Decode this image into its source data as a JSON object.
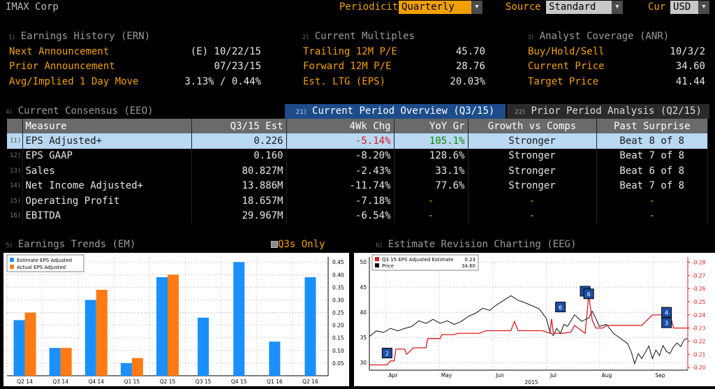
{
  "header": {
    "title": "IMAX Corp",
    "periodicity_label": "Periodicity",
    "periodicity_value": "Quarterly",
    "source_label": "Source",
    "source_value": "Standard",
    "cur_label": "Cur",
    "cur_value": "USD"
  },
  "sections": {
    "ern": {
      "index": "1)",
      "title": "Earnings History (ERN)",
      "rows": [
        {
          "label": "Next Announcement",
          "value": "(E)  10/22/15"
        },
        {
          "label": "Prior Announcement",
          "value": "07/23/15"
        },
        {
          "label": "Avg/Implied 1 Day Move",
          "value": "3.13% / 0.44%"
        }
      ]
    },
    "multiples": {
      "index": "2)",
      "title": "Current Multiples",
      "rows": [
        {
          "label": "Trailing 12M P/E",
          "value": "45.70"
        },
        {
          "label": "Forward 12M P/E",
          "value": "28.76"
        },
        {
          "label": "Est. LTG (EPS)",
          "value": "20.03%"
        }
      ]
    },
    "anr": {
      "index": "3)",
      "title": "Analyst Coverage (ANR)",
      "rows": [
        {
          "label": "Buy/Hold/Sell",
          "value": "10/3/2"
        },
        {
          "label": "Current Price",
          "value": "34.60"
        },
        {
          "label": "Target Price",
          "value": "41.44"
        }
      ]
    }
  },
  "consensus": {
    "index": "4)",
    "title": "Current Consensus (EEO)",
    "tab_current_index": "21)",
    "tab_current": "Current Period Overview (Q3/15)",
    "tab_prior_index": "22)",
    "tab_prior": "Prior Period Analysis (Q2/15)",
    "columns": [
      "Measure",
      "Q3/15 Est",
      "4Wk Chg",
      "YoY Gr",
      "Growth vs Comps",
      "Past Surprise"
    ],
    "rows": [
      {
        "idx": "11)",
        "measure": "EPS Adjusted+",
        "est": "0.226",
        "chg": "-5.14%",
        "yoy": "105.1%",
        "growth": "Stronger",
        "surprise": "Beat 8 of 8"
      },
      {
        "idx": "12)",
        "measure": "EPS GAAP",
        "est": "0.160",
        "chg": "-8.20%",
        "yoy": "128.6%",
        "growth": "Stronger",
        "surprise": "Beat 7 of 8"
      },
      {
        "idx": "13)",
        "measure": "Sales",
        "est": "80.827M",
        "chg": "-2.43%",
        "yoy": "33.1%",
        "growth": "Stronger",
        "surprise": "Beat 6 of 8"
      },
      {
        "idx": "14)",
        "measure": "Net Income Adjusted+",
        "est": "13.886M",
        "chg": "-11.74%",
        "yoy": "77.6%",
        "growth": "Stronger",
        "surprise": "Beat 7 of 8"
      },
      {
        "idx": "15)",
        "measure": "Operating Profit",
        "est": "18.657M",
        "chg": "-7.18%",
        "yoy": "-",
        "growth": "-",
        "surprise": "-"
      },
      {
        "idx": "16)",
        "measure": "EBITDA",
        "est": "29.967M",
        "chg": "-6.54%",
        "yoy": "-",
        "growth": "-",
        "surprise": "-"
      }
    ]
  },
  "trends": {
    "index": "5)",
    "title": "Earnings Trends (EM)",
    "toggle_label": "Q3s Only"
  },
  "revisions": {
    "index": "6)",
    "title": "Estimate Revision Charting (EEG)"
  },
  "colors": {
    "amber": "#f2a000",
    "estimate_blue": "#1a8fff",
    "actual_orange": "#ff7a12",
    "price_line": "#111111",
    "estimate_line": "#e0191e",
    "selected_row": "#b9d9f2"
  },
  "chart_data": [
    {
      "type": "bar",
      "categories": [
        "Q2 14",
        "Q3 14",
        "Q4 14",
        "Q1 15",
        "Q2 15",
        "Q3 15",
        "Q4 15",
        "Q1 16",
        "Q2 16"
      ],
      "series": [
        {
          "name": "Estimate EPS Adjusted",
          "values": [
            0.22,
            0.11,
            0.3,
            0.05,
            0.39,
            0.23,
            0.45,
            0.135,
            0.39
          ]
        },
        {
          "name": "Actual EPS Adjusted",
          "values": [
            0.25,
            0.11,
            0.34,
            0.07,
            0.4,
            null,
            null,
            null,
            null
          ]
        }
      ],
      "ylim": [
        0,
        0.47
      ],
      "yticks": [
        "0.05",
        "0.10",
        "0.15",
        "0.20",
        "0.25",
        "0.30",
        "0.35",
        "0.40",
        "0.45"
      ],
      "legend": "top-left",
      "grid": true
    },
    {
      "type": "line",
      "xlabel": "2015",
      "x_ticks": [
        "Apr",
        "May",
        "Jun",
        "Jul",
        "Aug",
        "Sep"
      ],
      "x_range": [
        0,
        180
      ],
      "y_left_ticks": [
        "30",
        "35",
        "40",
        "45",
        "50"
      ],
      "y_left_range": [
        28.5,
        51
      ],
      "y_right_ticks": [
        "0.20",
        "0.21",
        "0.22",
        "0.23",
        "0.24",
        "0.25",
        "0.26",
        "0.27",
        "0.28"
      ],
      "y_right_range": [
        0.198,
        0.284
      ],
      "legend_entries": [
        {
          "name": "Q3 15 EPS Adjusted Estimate",
          "value": "0.23"
        },
        {
          "name": "Price",
          "value": "34.60"
        }
      ],
      "series": [
        {
          "name": "Q3 15 EPS Adjusted Estimate",
          "axis": "right",
          "points": [
            [
              0,
              0.202
            ],
            [
              10,
              0.202
            ],
            [
              12,
              0.205
            ],
            [
              14,
              0.205
            ],
            [
              15,
              0.214
            ],
            [
              18,
              0.214
            ],
            [
              20,
              0.214
            ],
            [
              21,
              0.21
            ],
            [
              25,
              0.215
            ],
            [
              28,
              0.215
            ],
            [
              32,
              0.215
            ],
            [
              33,
              0.222
            ],
            [
              38,
              0.222
            ],
            [
              40,
              0.222
            ],
            [
              41,
              0.225
            ],
            [
              48,
              0.225
            ],
            [
              50,
              0.226
            ],
            [
              62,
              0.226
            ],
            [
              66,
              0.228
            ],
            [
              76,
              0.228
            ],
            [
              80,
              0.228
            ],
            [
              82,
              0.235
            ],
            [
              84,
              0.228
            ],
            [
              98,
              0.228
            ],
            [
              102,
              0.226
            ],
            [
              103,
              0.237
            ],
            [
              104,
              0.226
            ],
            [
              110,
              0.226
            ],
            [
              114,
              0.227
            ],
            [
              116,
              0.232
            ],
            [
              118,
              0.23
            ],
            [
              122,
              0.226
            ],
            [
              124,
              0.255
            ],
            [
              126,
              0.236
            ],
            [
              128,
              0.23
            ],
            [
              132,
              0.23
            ],
            [
              134,
              0.232
            ],
            [
              138,
              0.232
            ],
            [
              150,
              0.232
            ],
            [
              154,
              0.232
            ],
            [
              160,
              0.24
            ],
            [
              170,
              0.24
            ],
            [
              172,
              0.23
            ],
            [
              180,
              0.23
            ]
          ]
        },
        {
          "name": "Price",
          "axis": "left",
          "points": [
            [
              0,
              35.2
            ],
            [
              4,
              36.3
            ],
            [
              8,
              36
            ],
            [
              12,
              36.8
            ],
            [
              16,
              36.3
            ],
            [
              20,
              36.8
            ],
            [
              24,
              37.2
            ],
            [
              28,
              38.3
            ],
            [
              32,
              37.8
            ],
            [
              36,
              38.6
            ],
            [
              40,
              37.8
            ],
            [
              44,
              38.3
            ],
            [
              48,
              37.6
            ],
            [
              52,
              38.2
            ],
            [
              56,
              39.2
            ],
            [
              60,
              39.8
            ],
            [
              64,
              40.8
            ],
            [
              68,
              40.4
            ],
            [
              72,
              41.5
            ],
            [
              76,
              42.4
            ],
            [
              80,
              43.3
            ],
            [
              84,
              42.4
            ],
            [
              88,
              41.9
            ],
            [
              92,
              41.3
            ],
            [
              96,
              40.7
            ],
            [
              100,
              38.8
            ],
            [
              102,
              36.2
            ],
            [
              104,
              35.4
            ],
            [
              106,
              36.8
            ],
            [
              108,
              35.8
            ],
            [
              110,
              37.6
            ],
            [
              112,
              37.2
            ],
            [
              116,
              39.5
            ],
            [
              120,
              38.2
            ],
            [
              124,
              38.9
            ],
            [
              126,
              40.2
            ],
            [
              128,
              38.8
            ],
            [
              130,
              37.2
            ],
            [
              134,
              37.6
            ],
            [
              138,
              35.8
            ],
            [
              142,
              34.8
            ],
            [
              146,
              33.8
            ],
            [
              148,
              32.2
            ],
            [
              150,
              29.8
            ],
            [
              152,
              31.8
            ],
            [
              154,
              30.8
            ],
            [
              158,
              33.3
            ],
            [
              160,
              30.8
            ],
            [
              162,
              32.5
            ],
            [
              164,
              31.4
            ],
            [
              166,
              33.4
            ],
            [
              168,
              32.2
            ],
            [
              170,
              31.8
            ],
            [
              172,
              33.2
            ],
            [
              174,
              33.9
            ],
            [
              176,
              33.2
            ],
            [
              178,
              34.6
            ],
            [
              180,
              34.8
            ]
          ]
        }
      ],
      "markers": [
        {
          "label": "2",
          "x": 10,
          "y_right": 0.211
        },
        {
          "label": "6",
          "x": 108,
          "y_right": 0.246
        },
        {
          "label": "4",
          "x": 122,
          "y_right": 0.258
        },
        {
          "label": "6",
          "x": 124,
          "y_right": 0.256
        },
        {
          "label": "4",
          "x": 168,
          "y_right": 0.242
        },
        {
          "label": "3",
          "x": 168,
          "y_right": 0.234
        }
      ],
      "grid": true
    }
  ]
}
